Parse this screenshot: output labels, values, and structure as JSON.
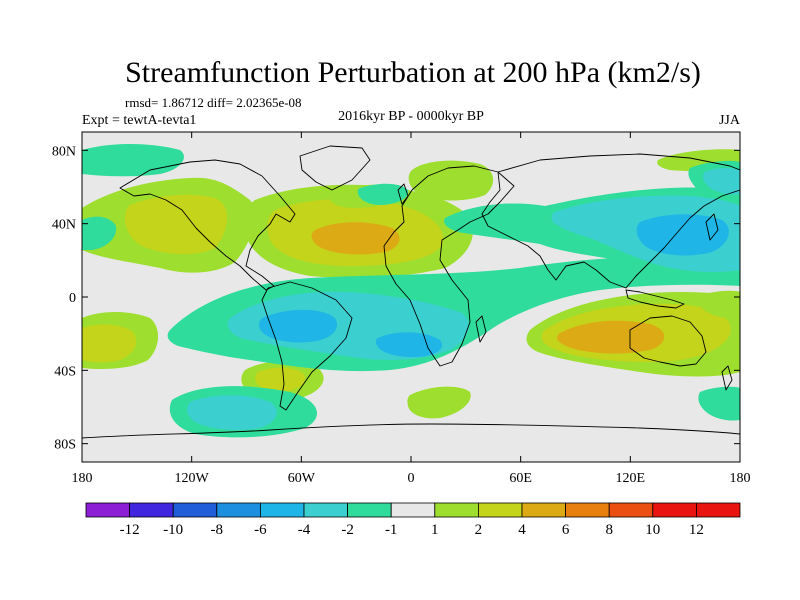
{
  "figure": {
    "title": "Streamfunction Perturbation at 200 hPa (km2/s)",
    "stats_line": "rmsd= 1.86712 diff= 2.02365e-08",
    "experiment": "Expt = tewtA-tevta1",
    "period": "2016kyr BP - 0000kyr BP",
    "season": "JJA"
  },
  "axes": {
    "lon_ticks": [
      {
        "value": -180,
        "label": "180"
      },
      {
        "value": -120,
        "label": "120W"
      },
      {
        "value": -60,
        "label": "60W"
      },
      {
        "value": 0,
        "label": "0"
      },
      {
        "value": 60,
        "label": "60E"
      },
      {
        "value": 120,
        "label": "120E"
      },
      {
        "value": 180,
        "label": "180"
      }
    ],
    "lat_ticks": [
      {
        "value": 80,
        "label": "80N"
      },
      {
        "value": 40,
        "label": "40N"
      },
      {
        "value": 0,
        "label": "0"
      },
      {
        "value": -40,
        "label": "40S"
      },
      {
        "value": -80,
        "label": "80S"
      }
    ],
    "lon_range": [
      -180,
      180
    ],
    "lat_range": [
      -90,
      90
    ]
  },
  "colorbar": {
    "labels": [
      "-12",
      "-10",
      "-8",
      "-6",
      "-4",
      "-2",
      "-1",
      "1",
      "2",
      "4",
      "6",
      "8",
      "10",
      "12"
    ],
    "colors": [
      "#8c1ed6",
      "#4126e0",
      "#1f5ed8",
      "#1d8fe0",
      "#1fb5e6",
      "#3ccfcf",
      "#2fdc9c",
      "#e8e8e8",
      "#9ede2e",
      "#c4d41a",
      "#dcaa14",
      "#e88010",
      "#ec5010",
      "#e81410"
    ]
  },
  "chart_data": {
    "type": "contour-map",
    "title": "Streamfunction Perturbation at 200 hPa (km2/s)",
    "units": "km2/s",
    "levels": [
      -12,
      -10,
      -8,
      -6,
      -4,
      -2,
      -1,
      1,
      2,
      4,
      6,
      8,
      10,
      12
    ],
    "features": [
      {
        "name": "positive anomaly, tropical North Atlantic",
        "lon": -30,
        "lat": 25,
        "value": 4
      },
      {
        "name": "positive anomaly, western North America",
        "lon": -110,
        "lat": 40,
        "value": 4
      },
      {
        "name": "positive anomaly, south Indian Ocean / Australia",
        "lon": 95,
        "lat": -30,
        "value": 4
      },
      {
        "name": "positive anomaly, eastern subtropical South Pacific",
        "lon": -160,
        "lat": -30,
        "value": 2
      },
      {
        "name": "positive anomaly, South Pacific near 60S",
        "lon": -70,
        "lat": -50,
        "value": 4
      },
      {
        "name": "negative anomaly, South America / south Atlantic band",
        "lon": -60,
        "lat": -20,
        "value": -4
      },
      {
        "name": "negative anomaly, south Atlantic",
        "lon": -20,
        "lat": -30,
        "value": -4
      },
      {
        "name": "negative anomaly, East Asia / northwest Pacific",
        "lon": 150,
        "lat": 35,
        "value": -4
      },
      {
        "name": "negative anomaly, high-latitude Southern Ocean",
        "lon": -105,
        "lat": -75,
        "value": -2
      },
      {
        "name": "positive anomaly, Scandinavia",
        "lon": 20,
        "lat": 68,
        "value": 2
      }
    ]
  }
}
